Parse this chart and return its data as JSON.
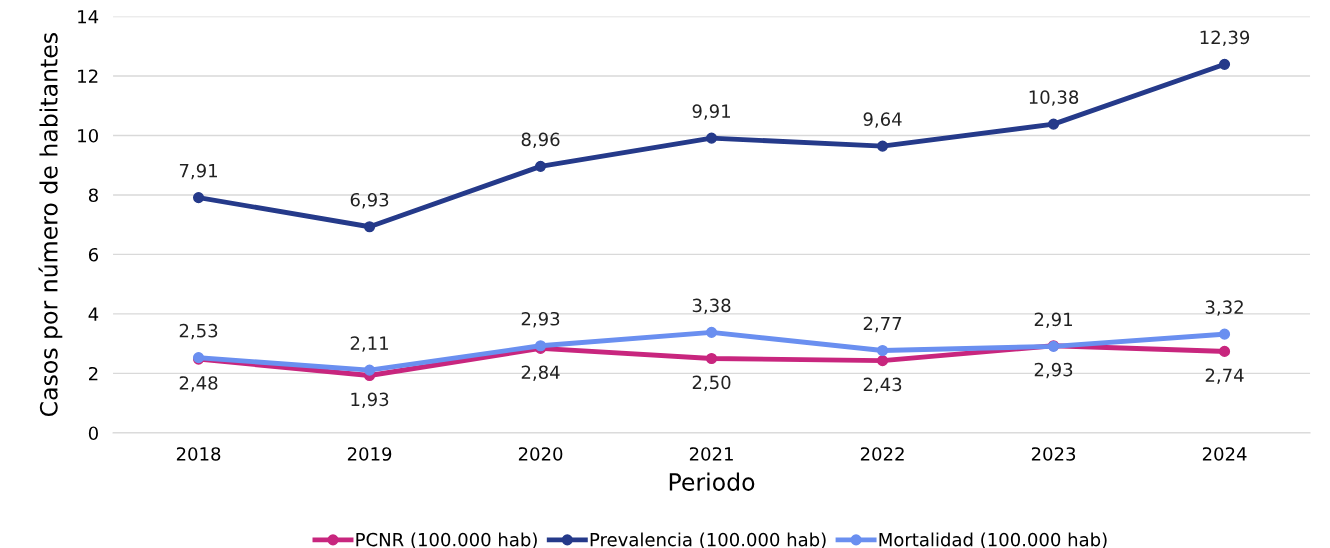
{
  "chart_data": {
    "type": "line",
    "xlabel": "Periodo",
    "ylabel": "Casos por número de habitantes",
    "categories": [
      "2018",
      "2019",
      "2020",
      "2021",
      "2022",
      "2023",
      "2024"
    ],
    "series": [
      {
        "name": "PCNR (100.000 hab)",
        "color": "#c8267e",
        "values": [
          2.48,
          1.93,
          2.84,
          2.5,
          2.43,
          2.93,
          2.74
        ],
        "value_labels": [
          "2,48",
          "1,93",
          "2,84",
          "2,50",
          "2,43",
          "2,93",
          "2,74"
        ]
      },
      {
        "name": "Prevalencia (100.000 hab)",
        "color": "#253a8a",
        "values": [
          7.91,
          6.93,
          8.96,
          9.91,
          9.64,
          10.38,
          12.39
        ],
        "value_labels": [
          "7,91",
          "6,93",
          "8,96",
          "9,91",
          "9,64",
          "10,38",
          "12,39"
        ]
      },
      {
        "name": "Mortalidad (100.000 hab)",
        "color": "#6a8ff0",
        "values": [
          2.53,
          2.11,
          2.93,
          3.38,
          2.77,
          2.91,
          3.32
        ],
        "value_labels": [
          "2,53",
          "2,11",
          "2,93",
          "3,38",
          "2,77",
          "2,91",
          "3,32"
        ]
      }
    ],
    "ylim": [
      0,
      14
    ],
    "yticks": [
      0,
      2,
      4,
      6,
      8,
      10,
      12,
      14
    ],
    "grid": "y",
    "legend": "bottom",
    "marker": "circle",
    "line_style": "solid"
  }
}
